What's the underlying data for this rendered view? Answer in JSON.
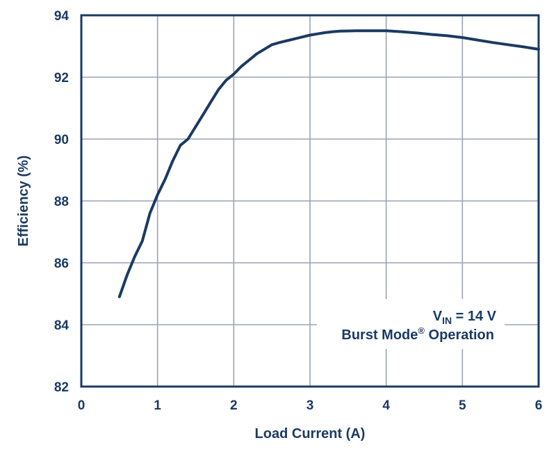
{
  "chart_data": {
    "type": "line",
    "title": "",
    "xlabel": "Load Current (A)",
    "ylabel": "Efficiency (%)",
    "xlim": [
      0,
      6
    ],
    "ylim": [
      82,
      94
    ],
    "xticks": [
      0,
      1,
      2,
      3,
      4,
      5,
      6
    ],
    "yticks": [
      82,
      84,
      86,
      88,
      90,
      92,
      94
    ],
    "grid": true,
    "colors": {
      "line": "#1b3a63",
      "grid": "#9aa3b5",
      "frame": "#1b3a63"
    },
    "annotation": {
      "vin_base": "V",
      "vin_sub": "IN",
      "vin_rest": " = 14 V",
      "mode_base": "Burst Mode",
      "mode_sup": "®",
      "mode_rest": " Operation",
      "placement": "bottom-right"
    },
    "series": [
      {
        "x": [
          0.5,
          0.6,
          0.7,
          0.8,
          0.9,
          1.0,
          1.1,
          1.2,
          1.3,
          1.4,
          1.5,
          1.6,
          1.7,
          1.8,
          1.9,
          2.0,
          2.1,
          2.2,
          2.3,
          2.4,
          2.5,
          2.6,
          2.7,
          2.8,
          2.9,
          3.0,
          3.1,
          3.2,
          3.3,
          3.4,
          3.6,
          3.8,
          4.0,
          4.2,
          4.4,
          4.6,
          4.8,
          5.0,
          5.2,
          5.4,
          5.6,
          5.8,
          6.0
        ],
        "y": [
          84.9,
          85.6,
          86.2,
          86.7,
          87.6,
          88.2,
          88.7,
          89.3,
          89.8,
          90.0,
          90.4,
          90.8,
          91.2,
          91.6,
          91.9,
          92.1,
          92.35,
          92.55,
          92.75,
          92.9,
          93.05,
          93.12,
          93.18,
          93.24,
          93.3,
          93.36,
          93.4,
          93.44,
          93.47,
          93.49,
          93.5,
          93.5,
          93.5,
          93.47,
          93.43,
          93.38,
          93.34,
          93.28,
          93.2,
          93.12,
          93.05,
          92.98,
          92.9
        ]
      }
    ]
  }
}
